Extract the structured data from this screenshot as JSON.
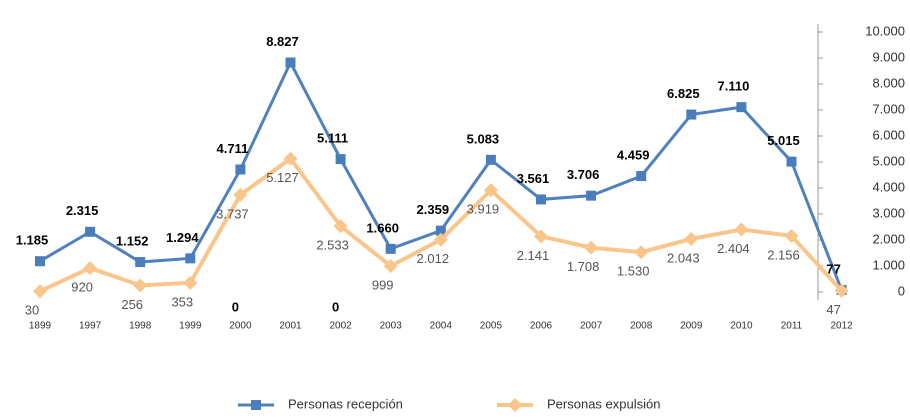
{
  "chart_data": {
    "type": "line",
    "categories": [
      "1899",
      "1997",
      "1998",
      "1999",
      "2000",
      "2001",
      "2002",
      "2003",
      "2004",
      "2005",
      "2006",
      "2007",
      "2008",
      "2009",
      "2010",
      "2011",
      "2012"
    ],
    "series": [
      {
        "name": "Personas recepción",
        "color": "#4f81bd",
        "marker": "square",
        "values": [
          1185,
          2315,
          1152,
          1294,
          4711,
          8827,
          5111,
          1660,
          2359,
          5083,
          3561,
          3706,
          4459,
          6825,
          7110,
          5015,
          77
        ],
        "value_labels": [
          "1.185",
          "2.315",
          "1.152",
          "1.294",
          "4.711",
          "8.827",
          "5.111",
          "1.660",
          "2.359",
          "5.083",
          "3.561",
          "3.706",
          "4.459",
          "6.825",
          "7.110",
          "5.015",
          "77"
        ]
      },
      {
        "name": "Personas expulsión",
        "color": "#fac58a",
        "marker": "diamond",
        "values": [
          30,
          920,
          256,
          353,
          3737,
          5127,
          2533,
          999,
          2012,
          3919,
          2141,
          1708,
          1530,
          2043,
          2404,
          2156,
          47
        ],
        "value_labels": [
          "30",
          "920",
          "256",
          "353",
          "3.737",
          "5.127",
          "2.533",
          "999",
          "2.012",
          "3.919",
          "2.141",
          "1.708",
          "1.530",
          "2.043",
          "2.404",
          "2.156",
          "47"
        ]
      }
    ],
    "annotations": [
      {
        "category": "2000",
        "text": "0"
      },
      {
        "category": "2002",
        "text": "0"
      }
    ],
    "ylim": [
      0,
      10000
    ],
    "yticks": [
      0,
      {
        "value": 1000,
        "label": "1.000"
      },
      {
        "value": 2000,
        "label": "2.000"
      },
      {
        "value": 3000,
        "label": "3.000"
      },
      {
        "value": 4000,
        "label": "4.000"
      },
      {
        "value": 5000,
        "label": "5.000"
      },
      {
        "value": 6000,
        "label": "6.000"
      },
      {
        "value": 7000,
        "label": "7.000"
      },
      {
        "value": 8000,
        "label": "8.000"
      },
      {
        "value": 9000,
        "label": "9.000"
      },
      {
        "value": 10000,
        "label": "10.000"
      }
    ],
    "yaxis_side": "right",
    "grid": false,
    "legend": "bottom"
  }
}
